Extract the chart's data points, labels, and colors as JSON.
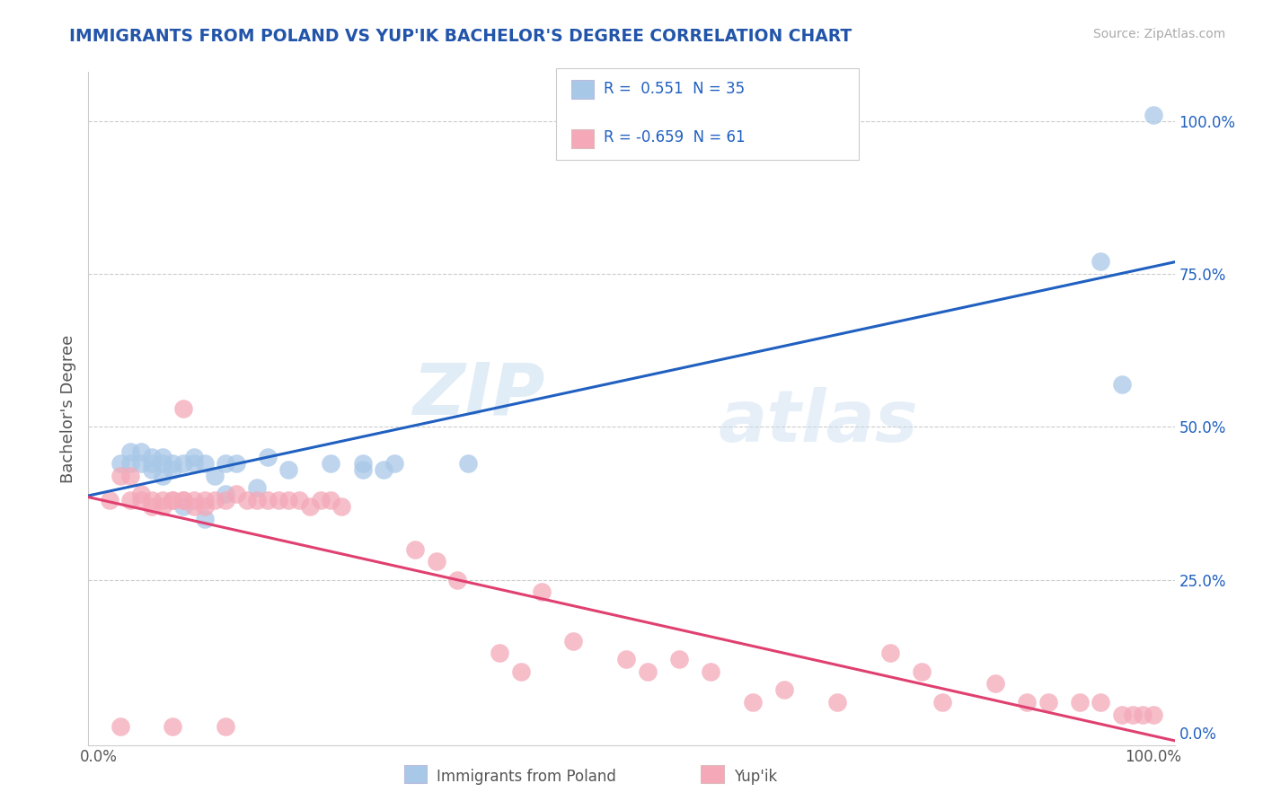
{
  "title": "IMMIGRANTS FROM POLAND VS YUP'IK BACHELOR'S DEGREE CORRELATION CHART",
  "source": "Source: ZipAtlas.com",
  "ylabel": "Bachelor's Degree",
  "watermark_zip": "ZIP",
  "watermark_atlas": "atlas",
  "blue_color": "#a8c8e8",
  "pink_color": "#f4a8b8",
  "blue_line_color": "#2060c0",
  "pink_line_color": "#e04070",
  "title_color": "#2255aa",
  "legend_text_color": "#2060c0",
  "source_color": "#aaaaaa",
  "grid_color": "#cccccc",
  "blue_scatter_x": [
    0.02,
    0.03,
    0.03,
    0.04,
    0.04,
    0.05,
    0.05,
    0.05,
    0.06,
    0.06,
    0.06,
    0.07,
    0.07,
    0.08,
    0.08,
    0.09,
    0.09,
    0.1,
    0.1,
    0.11,
    0.12,
    0.12,
    0.13,
    0.15,
    0.16,
    0.18,
    0.22,
    0.25,
    0.25,
    0.27,
    0.28,
    0.35,
    0.95,
    0.97,
    1.0
  ],
  "blue_scatter_y": [
    0.44,
    0.44,
    0.46,
    0.44,
    0.46,
    0.43,
    0.44,
    0.45,
    0.42,
    0.44,
    0.45,
    0.43,
    0.44,
    0.37,
    0.44,
    0.44,
    0.45,
    0.35,
    0.44,
    0.42,
    0.39,
    0.44,
    0.44,
    0.4,
    0.45,
    0.43,
    0.44,
    0.43,
    0.44,
    0.43,
    0.44,
    0.44,
    0.77,
    0.57,
    1.01
  ],
  "pink_scatter_x": [
    0.01,
    0.02,
    0.02,
    0.03,
    0.03,
    0.04,
    0.04,
    0.05,
    0.05,
    0.06,
    0.06,
    0.07,
    0.07,
    0.07,
    0.08,
    0.08,
    0.08,
    0.09,
    0.09,
    0.1,
    0.1,
    0.11,
    0.12,
    0.12,
    0.13,
    0.14,
    0.15,
    0.16,
    0.17,
    0.18,
    0.19,
    0.2,
    0.21,
    0.22,
    0.23,
    0.3,
    0.32,
    0.34,
    0.38,
    0.4,
    0.42,
    0.45,
    0.5,
    0.52,
    0.55,
    0.58,
    0.62,
    0.65,
    0.7,
    0.75,
    0.78,
    0.8,
    0.85,
    0.88,
    0.9,
    0.93,
    0.95,
    0.97,
    0.98,
    0.99,
    1.0
  ],
  "pink_scatter_y": [
    0.38,
    0.42,
    0.01,
    0.42,
    0.38,
    0.38,
    0.39,
    0.37,
    0.38,
    0.37,
    0.38,
    0.38,
    0.38,
    0.01,
    0.38,
    0.38,
    0.53,
    0.37,
    0.38,
    0.37,
    0.38,
    0.38,
    0.01,
    0.38,
    0.39,
    0.38,
    0.38,
    0.38,
    0.38,
    0.38,
    0.38,
    0.37,
    0.38,
    0.38,
    0.37,
    0.3,
    0.28,
    0.25,
    0.13,
    0.1,
    0.23,
    0.15,
    0.12,
    0.1,
    0.12,
    0.1,
    0.05,
    0.07,
    0.05,
    0.13,
    0.1,
    0.05,
    0.08,
    0.05,
    0.05,
    0.05,
    0.05,
    0.03,
    0.03,
    0.03,
    0.03
  ]
}
